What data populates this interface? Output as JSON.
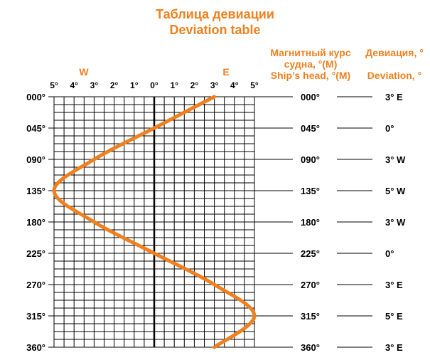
{
  "title_ru": "Таблица девиации",
  "title_en": "Deviation table",
  "headers": {
    "head_ru": "Магнитный курс судна, °(M)",
    "head_en": "Ship’s head, °(M)",
    "dev_ru": "Девиация, °",
    "dev_en": "Deviation, °"
  },
  "colors": {
    "accent": "#f07f1e",
    "grid": "#000000",
    "text": "#000000"
  },
  "chart_data": {
    "type": "line",
    "title": "Deviation table",
    "xlabel_west": "W",
    "xlabel_east": "E",
    "xlim": [
      -5,
      5
    ],
    "ylim": [
      0,
      360
    ],
    "x_ticks": [
      -5,
      -4,
      -3,
      -2,
      -1,
      0,
      1,
      2,
      3,
      4,
      5
    ],
    "x_tick_labels": [
      "5°",
      "4°",
      "3°",
      "2°",
      "1°",
      "0°",
      "1°",
      "2°",
      "3°",
      "4°",
      "5°"
    ],
    "y_ticks": [
      0,
      45,
      90,
      135,
      180,
      225,
      270,
      315,
      360
    ],
    "y_tick_labels": [
      "000°",
      "045°",
      "090°",
      "135°",
      "180°",
      "225°",
      "270°",
      "315°",
      "360°"
    ],
    "series": [
      {
        "name": "Deviation",
        "heading": [
          0,
          45,
          90,
          135,
          180,
          225,
          270,
          315,
          360
        ],
        "deviation": [
          3,
          0,
          -3,
          -5,
          -3,
          0,
          3,
          5,
          3
        ]
      }
    ],
    "table": [
      {
        "heading": "000°",
        "deviation": "3° E"
      },
      {
        "heading": "045°",
        "deviation": "0°"
      },
      {
        "heading": "090°",
        "deviation": "3° W"
      },
      {
        "heading": "135°",
        "deviation": "5° W"
      },
      {
        "heading": "180°",
        "deviation": "3° W"
      },
      {
        "heading": "225°",
        "deviation": "0°"
      },
      {
        "heading": "270°",
        "deviation": "3° E"
      },
      {
        "heading": "315°",
        "deviation": "5° E"
      },
      {
        "heading": "360°",
        "deviation": "3° E"
      }
    ]
  }
}
